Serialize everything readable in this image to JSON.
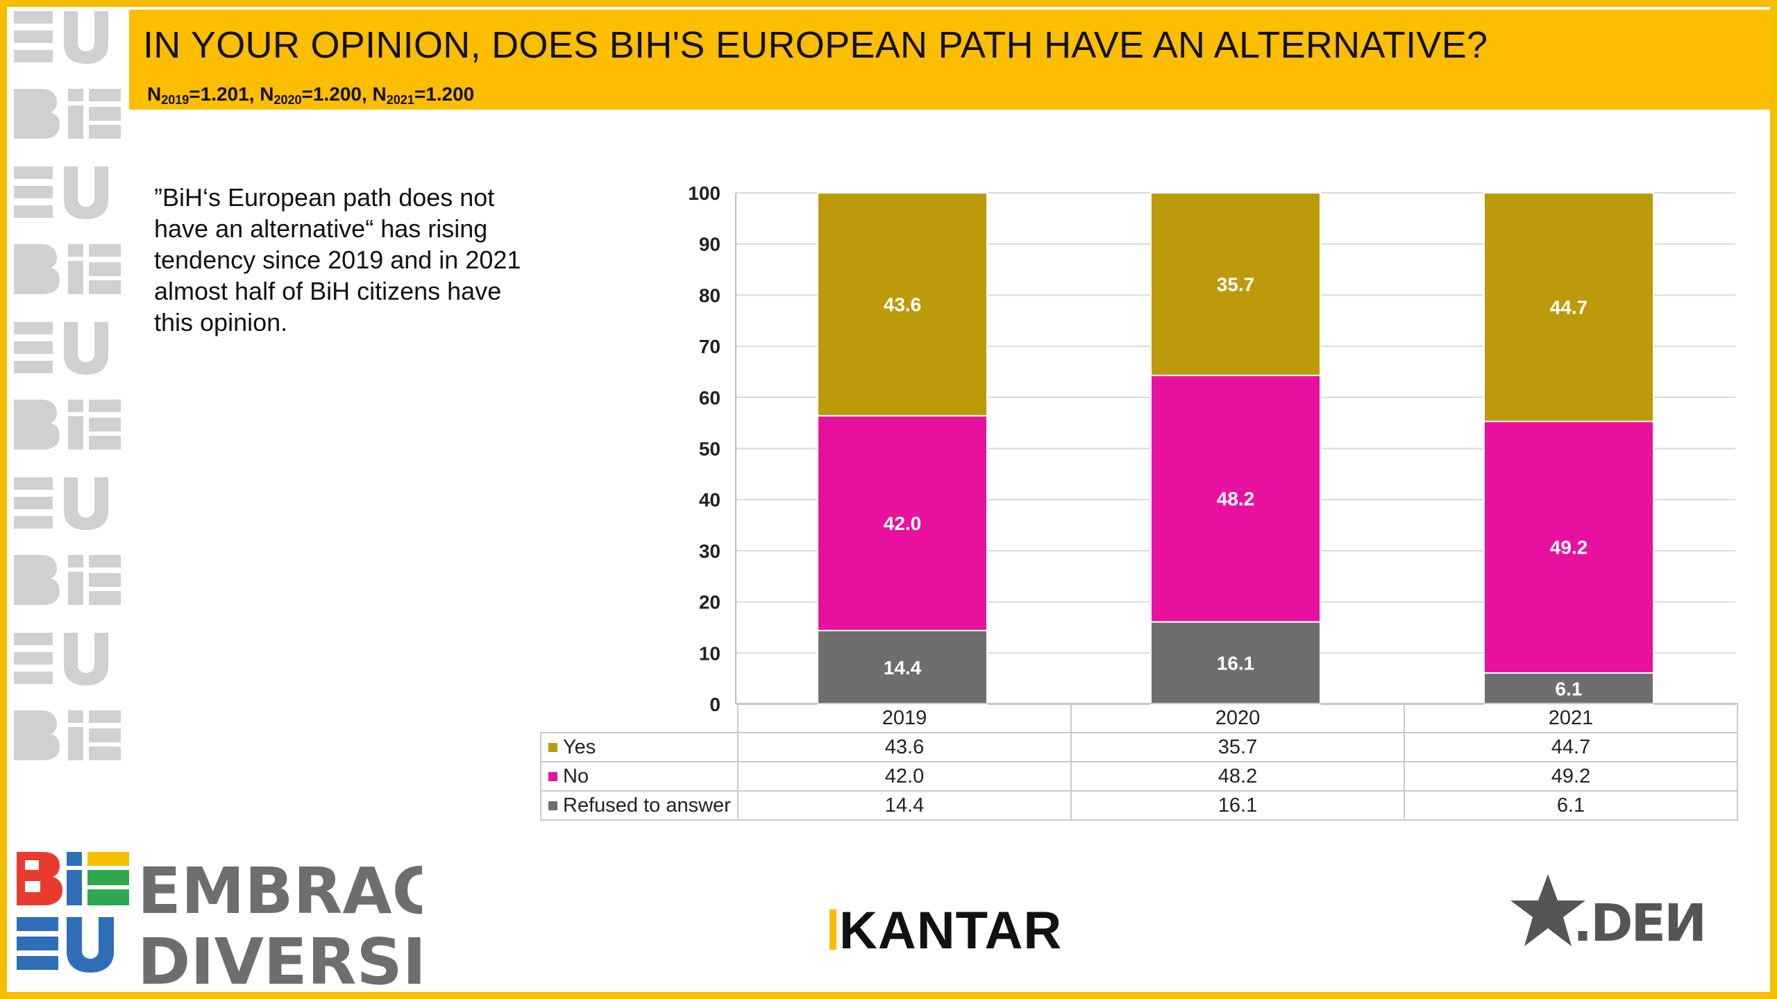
{
  "header": {
    "title": "IN YOUR OPINION, DOES BIH'S EUROPEAN PATH HAVE AN ALTERNATIVE?",
    "sample_sizes": [
      {
        "label": "N",
        "sub": "2019",
        "value": "=1.201"
      },
      {
        "label": "N",
        "sub": "2020",
        "value": "=1.200"
      },
      {
        "label": "N",
        "sub": "2021",
        "value": "=1.200"
      }
    ],
    "separator": ", "
  },
  "commentary": "”BiH‘s European path does not have an alternative“ has rising tendency since 2019 and in 2021 almost half of BiH citizens have this opinion.",
  "colors": {
    "frame": "#F5BE00",
    "header_bg": "#FDBD00",
    "yes": "#BC9A0A",
    "no": "#E8109F",
    "refused": "#6E6E6E"
  },
  "chart_data": {
    "type": "bar",
    "stacked": true,
    "title": "",
    "xlabel": "",
    "ylabel": "",
    "categories": [
      "2019",
      "2020",
      "2021"
    ],
    "ylim": [
      0,
      100
    ],
    "yticks": [
      0,
      10,
      20,
      30,
      40,
      50,
      60,
      70,
      80,
      90,
      100
    ],
    "grid": true,
    "series": [
      {
        "name": "Refused to answer",
        "color": "#6E6E6E",
        "values": [
          14.4,
          16.1,
          6.1
        ],
        "labels": [
          "14.4",
          "16.1",
          "6.1"
        ]
      },
      {
        "name": "No",
        "color": "#E8109F",
        "values": [
          42.0,
          48.2,
          49.2
        ],
        "labels": [
          "42.0",
          "48.2",
          "49.2"
        ]
      },
      {
        "name": "Yes",
        "color": "#BC9A0A",
        "values": [
          43.6,
          35.7,
          44.7
        ],
        "labels": [
          "43.6",
          "35.7",
          "44.7"
        ]
      }
    ],
    "data_table": {
      "rows": [
        {
          "name": "Yes",
          "color": "#BC9A0A",
          "cells": [
            "43.6",
            "35.7",
            "44.7"
          ]
        },
        {
          "name": "No",
          "color": "#E8109F",
          "cells": [
            "42.0",
            "48.2",
            "49.2"
          ]
        },
        {
          "name": "Refused to answer",
          "color": "#6E6E6E",
          "cells": [
            "14.4",
            "16.1",
            "6.1"
          ]
        }
      ]
    }
  },
  "logos": {
    "embrace_line1": "EMBRACE",
    "embrace_line2": "DIVERSITY",
    "kantar": "KANTAR",
    "ceden": "CEDEN"
  }
}
